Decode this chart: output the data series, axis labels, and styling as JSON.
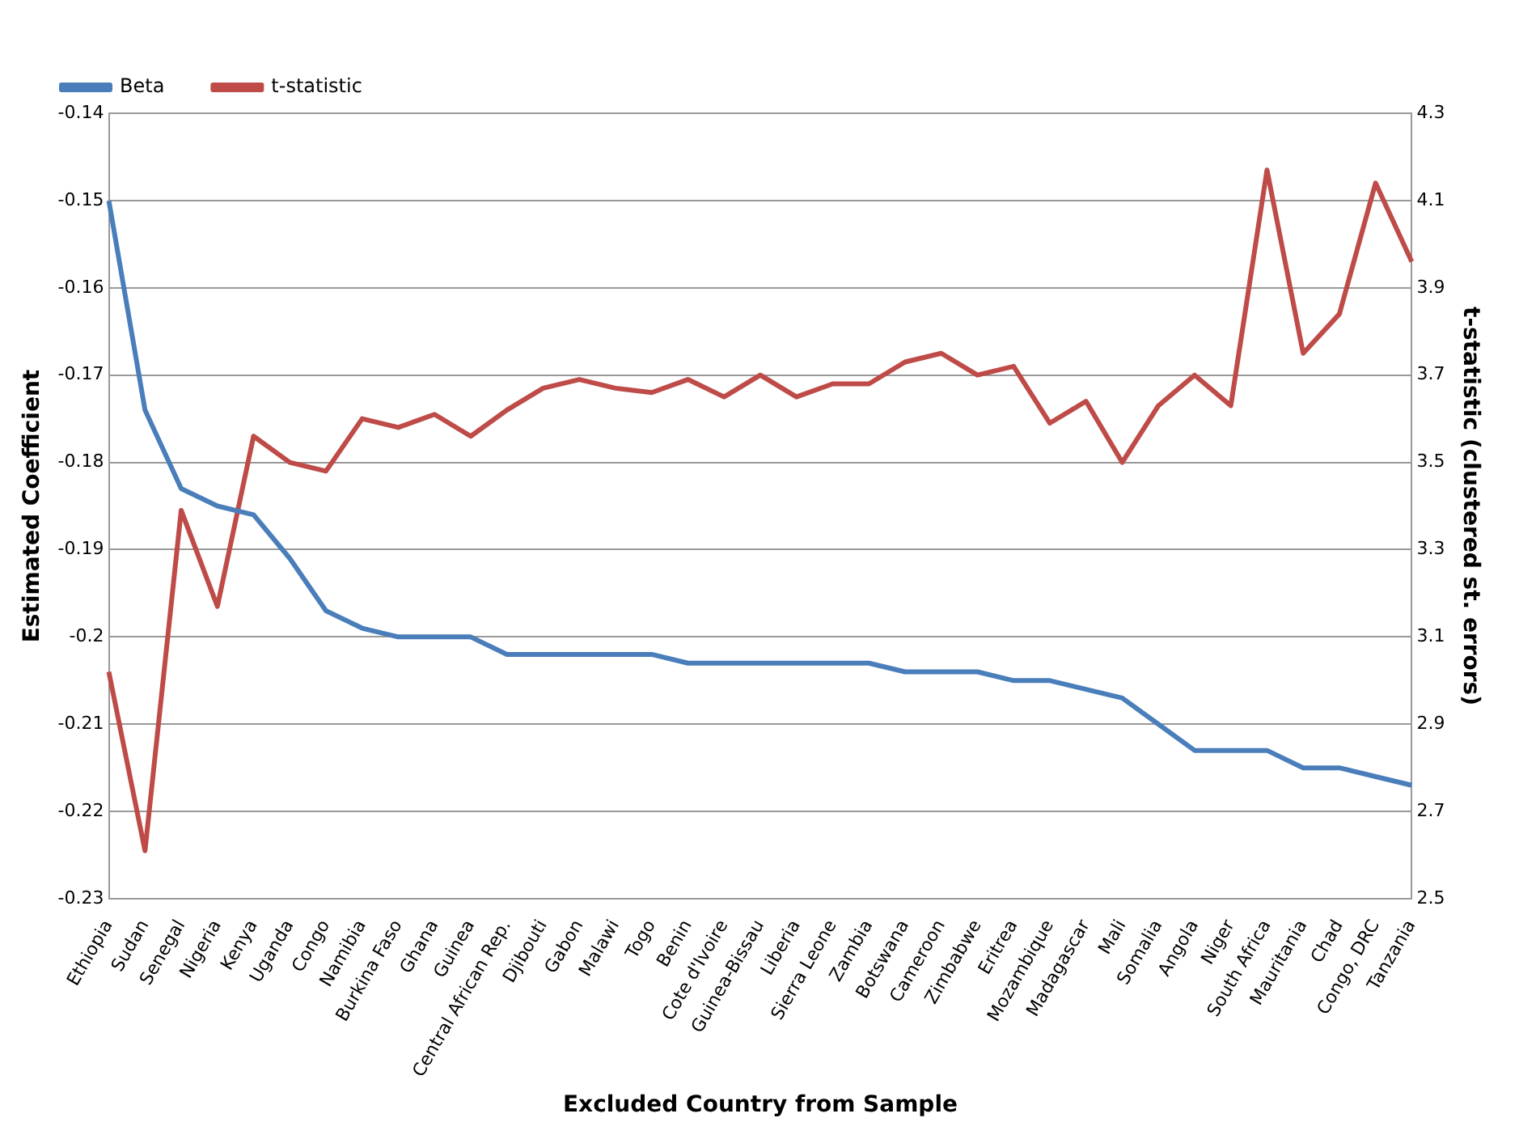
{
  "chart_data": {
    "type": "line",
    "xlabel": "Excluded Country from Sample",
    "ylabel": "Estimated Coefficient",
    "y2label": "t-statistic (clustered st. errors)",
    "categories": [
      "Ethiopia",
      "Sudan",
      "Senegal",
      "Nigeria",
      "Kenya",
      "Uganda",
      "Congo",
      "Namibia",
      "Burkina Faso",
      "Ghana",
      "Guinea",
      "Central African Rep.",
      "Djibouti",
      "Gabon",
      "Malawi",
      "Togo",
      "Benin",
      "Cote d'Ivoire",
      "Guinea-Bissau",
      "Liberia",
      "Sierra Leone",
      "Zambia",
      "Botswana",
      "Cameroon",
      "Zimbabwe",
      "Eritrea",
      "Mozambique",
      "Madagascar",
      "Mali",
      "Somalia",
      "Angola",
      "Niger",
      "South Africa",
      "Mauritania",
      "Chad",
      "Congo, DRC",
      "Tanzania"
    ],
    "series": [
      {
        "name": "Beta",
        "color": "#4a7ebb",
        "values": [
          -0.15,
          -0.174,
          -0.183,
          -0.185,
          -0.186,
          -0.191,
          -0.197,
          -0.199,
          -0.2,
          -0.2,
          -0.2,
          -0.202,
          -0.202,
          -0.202,
          -0.202,
          -0.202,
          -0.203,
          -0.203,
          -0.203,
          -0.203,
          -0.203,
          -0.203,
          -0.204,
          -0.204,
          -0.204,
          -0.205,
          -0.205,
          -0.206,
          -0.207,
          -0.21,
          -0.213,
          -0.213,
          -0.213,
          -0.215,
          -0.215,
          -0.216,
          -0.217
        ]
      },
      {
        "name": "t-statistic",
        "color": "#be4b48",
        "axis": "y2",
        "values": [
          3.02,
          2.61,
          3.39,
          3.17,
          3.56,
          3.5,
          3.48,
          3.6,
          3.58,
          3.61,
          3.56,
          3.62,
          3.67,
          3.69,
          3.67,
          3.66,
          3.69,
          3.65,
          3.7,
          3.65,
          3.68,
          3.68,
          3.73,
          3.75,
          3.7,
          3.72,
          3.59,
          3.64,
          3.5,
          3.63,
          3.7,
          3.63,
          4.17,
          3.75,
          3.84,
          4.14,
          3.96
        ]
      }
    ],
    "ylim": [
      -0.23,
      -0.14
    ],
    "yticks": [
      -0.23,
      -0.22,
      -0.21,
      {
        "value": -0.2,
        "label": "-0.2"
      },
      -0.19,
      -0.18,
      -0.17,
      -0.16,
      -0.15,
      -0.14
    ],
    "y2lim": [
      2.5,
      4.3
    ],
    "y2ticks": [
      2.5,
      2.7,
      2.9,
      3.1,
      3.3,
      3.5,
      3.7,
      3.9,
      4.1,
      4.3
    ],
    "grid": "y",
    "legend": "top left",
    "marker": "none",
    "line_style": "solid"
  }
}
